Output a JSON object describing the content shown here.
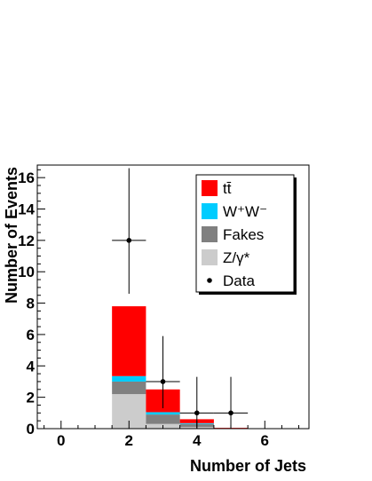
{
  "chart_data": {
    "type": "bar",
    "stacked": true,
    "xlabel": "Number of Jets",
    "ylabel": "Number of Events",
    "xlim": [
      -0.7,
      7.3
    ],
    "ylim": [
      0,
      16.8
    ],
    "grid": false,
    "legend_placement": "top-right",
    "x_ticks": [
      0,
      2,
      4,
      6
    ],
    "y_ticks": [
      0,
      2,
      4,
      6,
      8,
      10,
      12,
      14,
      16
    ],
    "bins": [
      [
        1.5,
        2.5
      ],
      [
        2.5,
        3.5
      ],
      [
        3.5,
        4.5
      ],
      [
        4.5,
        5.5
      ]
    ],
    "series": [
      {
        "name": "Z/γ*",
        "color": "#cccccc",
        "values": [
          2.2,
          0.3,
          0.1,
          0.0
        ]
      },
      {
        "name": "Fakes",
        "color": "#808080",
        "values": [
          0.8,
          0.6,
          0.2,
          0.0
        ]
      },
      {
        "name": "W⁺W⁻",
        "color": "#00ccff",
        "values": [
          0.35,
          0.15,
          0.05,
          0.0
        ]
      },
      {
        "name": "tt̄",
        "color": "#ff0000",
        "values": [
          4.45,
          1.45,
          0.25,
          0.05
        ]
      }
    ],
    "data_points": {
      "name": "Data",
      "x": [
        2,
        3,
        4,
        5
      ],
      "y": [
        12,
        3,
        1,
        1
      ],
      "x_err": [
        0.5,
        0.5,
        0.5,
        0.5
      ],
      "y_err_low": [
        3.4,
        1.7,
        1.0,
        1.0
      ],
      "y_err_high": [
        4.6,
        2.9,
        2.3,
        2.3
      ]
    }
  }
}
